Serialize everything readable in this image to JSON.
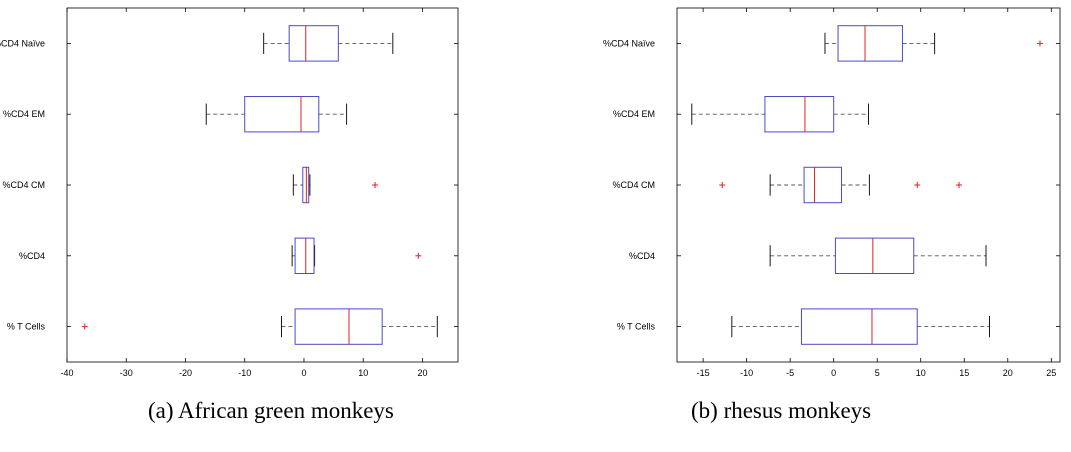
{
  "captions": {
    "a": "(a) African green monkeys",
    "b": "(b) rhesus monkeys"
  },
  "colors": {
    "box": "#4b4bc8",
    "median": "#e02020",
    "whisker": "#555555",
    "outlier": "#e02020",
    "axes": "#000000"
  },
  "chart_data": [
    {
      "type": "boxplot",
      "orientation": "horizontal",
      "title": "",
      "xlabel": "",
      "ylabel": "",
      "xlim": [
        -40,
        26
      ],
      "xticks": [
        -40,
        -30,
        -20,
        -10,
        0,
        10,
        20
      ],
      "grid": false,
      "categories": [
        "%CD4 Naïve",
        "%CD4 EM",
        "%CD4 CM",
        "%CD4",
        "% T Cells"
      ],
      "boxes": [
        {
          "label": "%CD4 Naïve",
          "whisker_low": -6.8,
          "q1": -2.5,
          "median": 0.3,
          "q3": 5.8,
          "whisker_high": 15.0,
          "outliers": []
        },
        {
          "label": "%CD4 EM",
          "whisker_low": -16.5,
          "q1": -10.0,
          "median": -0.5,
          "q3": 2.5,
          "whisker_high": 7.2,
          "outliers": []
        },
        {
          "label": "%CD4 CM",
          "whisker_low": -1.8,
          "q1": -0.2,
          "median": 0.4,
          "q3": 0.8,
          "whisker_high": 1.0,
          "outliers": [
            12.0
          ]
        },
        {
          "label": "%CD4",
          "whisker_low": -2.0,
          "q1": -1.5,
          "median": 0.3,
          "q3": 1.7,
          "whisker_high": 1.8,
          "outliers": [
            19.3
          ]
        },
        {
          "label": "% T Cells",
          "whisker_low": -3.8,
          "q1": -1.5,
          "median": 7.6,
          "q3": 13.2,
          "whisker_high": 22.5,
          "outliers": [
            -37.0
          ]
        }
      ]
    },
    {
      "type": "boxplot",
      "orientation": "horizontal",
      "title": "",
      "xlabel": "",
      "ylabel": "",
      "xlim": [
        -18,
        26
      ],
      "xticks": [
        -15,
        -10,
        -5,
        0,
        5,
        10,
        15,
        20,
        25
      ],
      "grid": false,
      "categories": [
        "%CD4 Naïve",
        "%CD4 EM",
        "%CD4 CM",
        "%CD4",
        "% T Cells"
      ],
      "boxes": [
        {
          "label": "%CD4 Naïve",
          "whisker_low": -1.0,
          "q1": 0.5,
          "median": 3.6,
          "q3": 7.9,
          "whisker_high": 11.6,
          "outliers": [
            23.7
          ]
        },
        {
          "label": "%CD4 EM",
          "whisker_low": -16.3,
          "q1": -7.9,
          "median": -3.3,
          "q3": 0.0,
          "whisker_high": 4.0,
          "outliers": []
        },
        {
          "label": "%CD4 CM",
          "whisker_low": -7.3,
          "q1": -3.4,
          "median": -2.2,
          "q3": 0.9,
          "whisker_high": 4.1,
          "outliers": [
            -12.8,
            9.6,
            14.4
          ]
        },
        {
          "label": "%CD4",
          "whisker_low": -7.3,
          "q1": 0.2,
          "median": 4.5,
          "q3": 9.2,
          "whisker_high": 17.5,
          "outliers": []
        },
        {
          "label": "% T Cells",
          "whisker_low": -11.7,
          "q1": -3.7,
          "median": 4.4,
          "q3": 9.6,
          "whisker_high": 17.9,
          "outliers": []
        }
      ]
    }
  ]
}
